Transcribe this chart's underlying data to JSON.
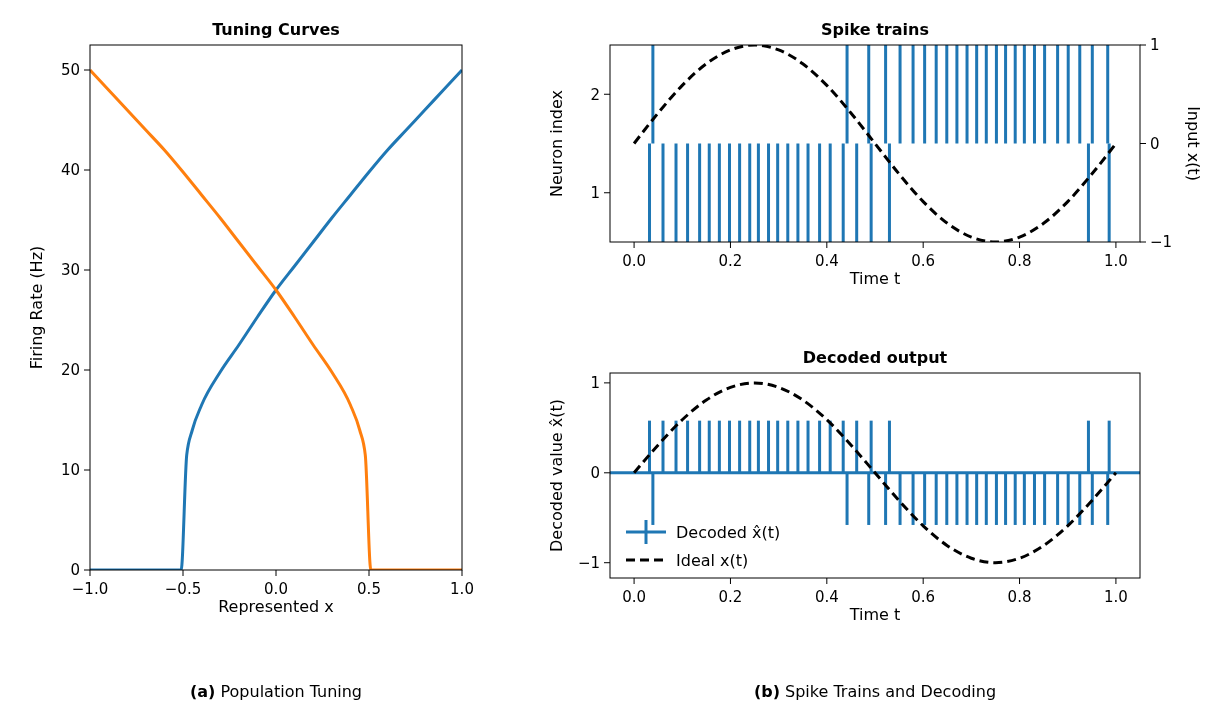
{
  "chart_data": [
    {
      "type": "line",
      "title": "Tuning Curves",
      "xlabel": "Represented x",
      "ylabel": "Firing Rate (Hz)",
      "xlim": [
        -1,
        1
      ],
      "ylim": [
        0,
        52.5
      ],
      "xticks": [
        {
          "value": -1,
          "label": "−1.0"
        },
        {
          "value": -0.5,
          "label": "−0.5"
        },
        {
          "value": 0,
          "label": "0.0"
        },
        {
          "value": 0.5,
          "label": "0.5"
        },
        {
          "value": 1,
          "label": "1.0"
        }
      ],
      "yticks": [
        0,
        10,
        20,
        30,
        40,
        50
      ],
      "legend": false,
      "annotations": [
        "(a) Population Tuning"
      ],
      "series": [
        {
          "color": "#1f77b4",
          "x": [
            -1,
            -0.51,
            -0.48,
            -0.45,
            -0.4,
            -0.3,
            -0.2,
            -0.1,
            0,
            0.1,
            0.2,
            0.3,
            0.4,
            0.5,
            0.6,
            0.7,
            0.8,
            0.9,
            1
          ],
          "values": [
            0,
            0,
            11.5,
            14,
            16.5,
            19.8,
            22.5,
            25.3,
            28,
            30.4,
            32.8,
            35.2,
            37.5,
            39.8,
            42,
            44,
            46,
            48,
            50
          ]
        },
        {
          "color": "#ff7f0e",
          "x": [
            -1,
            -0.9,
            -0.8,
            -0.7,
            -0.6,
            -0.5,
            -0.4,
            -0.3,
            -0.2,
            -0.1,
            0,
            0.1,
            0.2,
            0.3,
            0.4,
            0.45,
            0.48,
            0.51,
            1
          ],
          "values": [
            50,
            48,
            46,
            44,
            42,
            39.8,
            37.5,
            35.2,
            32.8,
            30.4,
            28,
            25.3,
            22.5,
            19.8,
            16.5,
            14,
            11.5,
            0,
            0
          ]
        }
      ]
    },
    {
      "type": "bar",
      "title": "Spike trains",
      "xlabel": "Time t",
      "ylabel": "Neuron index",
      "y2label": "Input x(t)",
      "xlim": [
        -0.05,
        1.05
      ],
      "ylim": [
        0.5,
        2.5
      ],
      "y2lim": [
        -1,
        1
      ],
      "xticks": [
        {
          "value": 0,
          "label": "0.0"
        },
        {
          "value": 0.2,
          "label": "0.2"
        },
        {
          "value": 0.4,
          "label": "0.4"
        },
        {
          "value": 0.6,
          "label": "0.6"
        },
        {
          "value": 0.8,
          "label": "0.8"
        },
        {
          "value": 1,
          "label": "1.0"
        }
      ],
      "yticks": [
        1,
        2
      ],
      "y2ticks": [
        {
          "value": -1,
          "label": "−1"
        },
        0,
        1
      ],
      "legend": false,
      "series": [
        {
          "color": "#1f77b4",
          "x": [
            0.032,
            0.039,
            0.06,
            0.087,
            0.111,
            0.136,
            0.156,
            0.177,
            0.198,
            0.219,
            0.24,
            0.258,
            0.279,
            0.298,
            0.319,
            0.34,
            0.361,
            0.385,
            0.407,
            0.434,
            0.442,
            0.462,
            0.487,
            0.492,
            0.522,
            0.53,
            0.552,
            0.579,
            0.603,
            0.627,
            0.649,
            0.67,
            0.691,
            0.711,
            0.731,
            0.752,
            0.771,
            0.791,
            0.81,
            0.831,
            0.852,
            0.879,
            0.901,
            0.925,
            0.943,
            0.951,
            0.983,
            0.986
          ],
          "base": [
            0.5,
            1.5,
            0.5,
            0.5,
            0.5,
            0.5,
            0.5,
            0.5,
            0.5,
            0.5,
            0.5,
            0.5,
            0.5,
            0.5,
            0.5,
            0.5,
            0.5,
            0.5,
            0.5,
            0.5,
            1.5,
            0.5,
            1.5,
            0.5,
            1.5,
            0.5,
            1.5,
            1.5,
            1.5,
            1.5,
            1.5,
            1.5,
            1.5,
            1.5,
            1.5,
            1.5,
            1.5,
            1.5,
            1.5,
            1.5,
            1.5,
            1.5,
            1.5,
            1.5,
            0.5,
            1.5,
            1.5,
            0.5
          ],
          "values": [
            1,
            1,
            1,
            1,
            1,
            1,
            1,
            1,
            1,
            1,
            1,
            1,
            1,
            1,
            1,
            1,
            1,
            1,
            1,
            1,
            1,
            1,
            1,
            1,
            1,
            1,
            1,
            1,
            1,
            1,
            1,
            1,
            1,
            1,
            1,
            1,
            1,
            1,
            1,
            1,
            1,
            1,
            1,
            1,
            1,
            1,
            1,
            1
          ]
        },
        {
          "type": "line",
          "axis": "y2",
          "color": "#000000",
          "line_style": "dashed",
          "x": [
            0,
            0.05,
            0.1,
            0.15,
            0.2,
            0.25,
            0.3,
            0.35,
            0.4,
            0.45,
            0.5,
            0.55,
            0.6,
            0.65,
            0.7,
            0.75,
            0.8,
            0.85,
            0.9,
            0.95,
            1
          ],
          "values": [
            0,
            0.31,
            0.59,
            0.81,
            0.95,
            1,
            0.95,
            0.81,
            0.59,
            0.31,
            0,
            -0.31,
            -0.59,
            -0.81,
            -0.95,
            -1,
            -0.95,
            -0.81,
            -0.59,
            -0.31,
            0
          ]
        }
      ]
    },
    {
      "type": "bar",
      "title": "Decoded output",
      "xlabel": "Time t",
      "ylabel": "Decoded value x̂(t)",
      "xlim": [
        -0.05,
        1.05
      ],
      "ylim": [
        -1.17,
        1.11
      ],
      "xticks": [
        {
          "value": 0,
          "label": "0.0"
        },
        {
          "value": 0.2,
          "label": "0.2"
        },
        {
          "value": 0.4,
          "label": "0.4"
        },
        {
          "value": 0.6,
          "label": "0.6"
        },
        {
          "value": 0.8,
          "label": "0.8"
        },
        {
          "value": 1,
          "label": "1.0"
        }
      ],
      "yticks": [
        {
          "value": -1,
          "label": "−1"
        },
        0,
        1
      ],
      "legend": "bottom left",
      "annotations": [
        "(b) Spike Trains and Decoding"
      ],
      "ref_lines": [
        {
          "axis": "y",
          "value": 0,
          "color": "#1f77b4"
        }
      ],
      "series": [
        {
          "name": "Decoded x̂(t)",
          "color": "#1f77b4",
          "x": [
            0.032,
            0.039,
            0.06,
            0.087,
            0.111,
            0.136,
            0.156,
            0.177,
            0.198,
            0.219,
            0.24,
            0.258,
            0.279,
            0.298,
            0.319,
            0.34,
            0.361,
            0.385,
            0.407,
            0.434,
            0.442,
            0.462,
            0.487,
            0.492,
            0.522,
            0.53,
            0.552,
            0.579,
            0.603,
            0.627,
            0.649,
            0.67,
            0.691,
            0.711,
            0.731,
            0.752,
            0.771,
            0.791,
            0.81,
            0.831,
            0.852,
            0.879,
            0.901,
            0.925,
            0.943,
            0.951,
            0.983,
            0.986
          ],
          "values": [
            0.58,
            -0.58,
            0.58,
            0.58,
            0.58,
            0.58,
            0.58,
            0.58,
            0.58,
            0.58,
            0.58,
            0.58,
            0.58,
            0.58,
            0.58,
            0.58,
            0.58,
            0.58,
            0.58,
            0.58,
            -0.58,
            0.58,
            -0.58,
            0.58,
            -0.58,
            0.58,
            -0.58,
            -0.58,
            -0.58,
            -0.58,
            -0.58,
            -0.58,
            -0.58,
            -0.58,
            -0.58,
            -0.58,
            -0.58,
            -0.58,
            -0.58,
            -0.58,
            -0.58,
            -0.58,
            -0.58,
            -0.58,
            0.58,
            -0.58,
            -0.58,
            0.58
          ]
        },
        {
          "type": "line",
          "name": "Ideal x(t)",
          "color": "#000000",
          "line_style": "dashed",
          "x": [
            0,
            0.05,
            0.1,
            0.15,
            0.2,
            0.25,
            0.3,
            0.35,
            0.4,
            0.45,
            0.5,
            0.55,
            0.6,
            0.65,
            0.7,
            0.75,
            0.8,
            0.85,
            0.9,
            0.95,
            1
          ],
          "values": [
            0,
            0.31,
            0.59,
            0.81,
            0.95,
            1,
            0.95,
            0.81,
            0.59,
            0.31,
            0,
            -0.31,
            -0.59,
            -0.81,
            -0.95,
            -1,
            -0.95,
            -0.81,
            -0.59,
            -0.31,
            0
          ]
        }
      ]
    }
  ]
}
